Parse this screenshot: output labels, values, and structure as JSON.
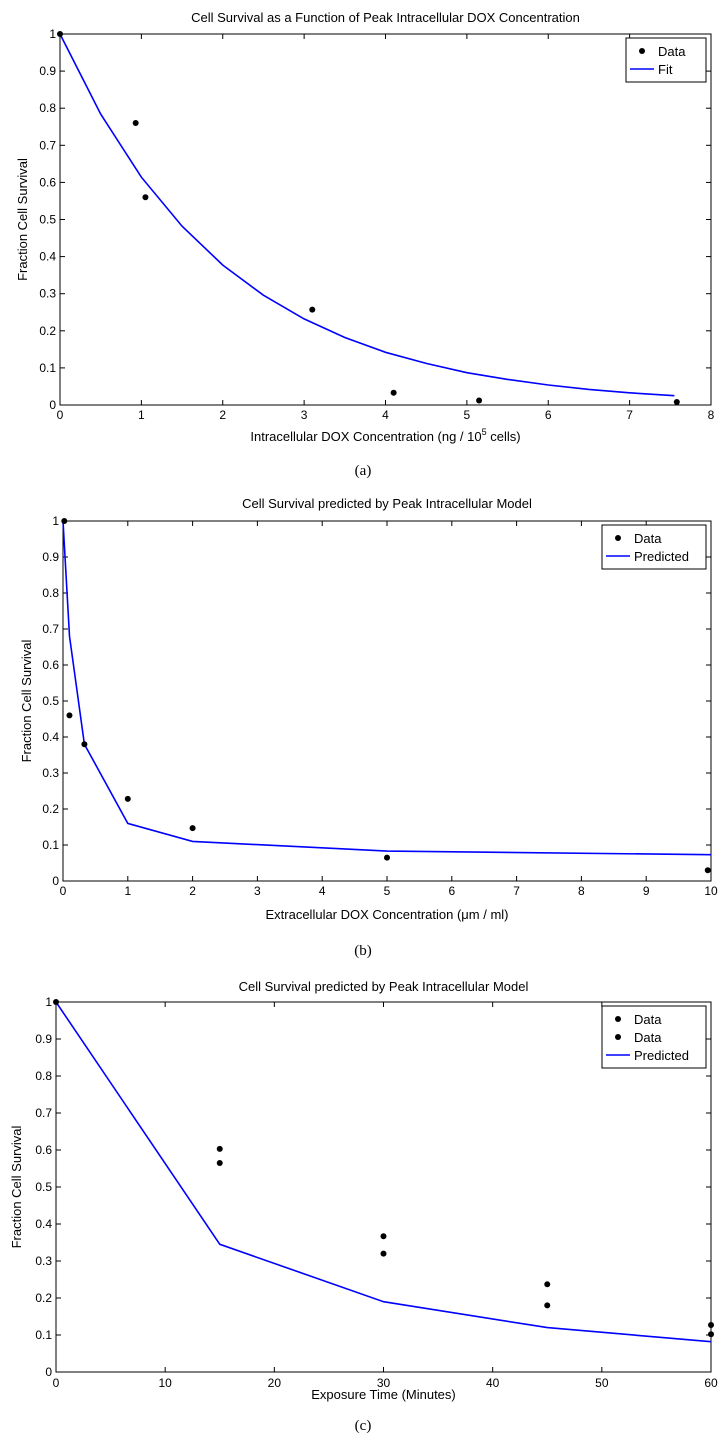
{
  "chart_data": [
    {
      "type": "scatter",
      "title": "Cell Survival as a Function of Peak Intracellular DOX Concentration",
      "xlabel_pre": "Intracellular DOX Concentration (ng / 10",
      "xlabel_sup": "5",
      "xlabel_post": " cells)",
      "ylabel": "Fraction Cell Survival",
      "caption": "(a)",
      "xlim": [
        0,
        8
      ],
      "ylim": [
        0,
        1
      ],
      "xticks": [
        "0",
        "1",
        "2",
        "3",
        "4",
        "5",
        "6",
        "7",
        "8"
      ],
      "yticks": [
        "0",
        "0.1",
        "0.2",
        "0.3",
        "0.4",
        "0.5",
        "0.6",
        "0.7",
        "0.8",
        "0.9",
        "1"
      ],
      "line_color": "#0000ff",
      "point_color": "#000000",
      "legend": {
        "position": "top-right",
        "entries": [
          {
            "kind": "point",
            "label": "Data"
          },
          {
            "kind": "line",
            "label": "Fit"
          }
        ]
      },
      "points": [
        {
          "x": 0,
          "y": 1.0
        },
        {
          "x": 0.93,
          "y": 0.76
        },
        {
          "x": 1.05,
          "y": 0.56
        },
        {
          "x": 3.1,
          "y": 0.257
        },
        {
          "x": 4.1,
          "y": 0.033
        },
        {
          "x": 5.15,
          "y": 0.012
        },
        {
          "x": 7.58,
          "y": 0.008
        }
      ],
      "line": [
        {
          "x": 0,
          "y": 1.0
        },
        {
          "x": 0.5,
          "y": 0.784
        },
        {
          "x": 1,
          "y": 0.614
        },
        {
          "x": 1.5,
          "y": 0.482
        },
        {
          "x": 2,
          "y": 0.377
        },
        {
          "x": 2.5,
          "y": 0.296
        },
        {
          "x": 3,
          "y": 0.232
        },
        {
          "x": 3.5,
          "y": 0.182
        },
        {
          "x": 4,
          "y": 0.142
        },
        {
          "x": 4.5,
          "y": 0.112
        },
        {
          "x": 5,
          "y": 0.087
        },
        {
          "x": 5.5,
          "y": 0.069
        },
        {
          "x": 6,
          "y": 0.054
        },
        {
          "x": 6.5,
          "y": 0.042
        },
        {
          "x": 7,
          "y": 0.033
        },
        {
          "x": 7.55,
          "y": 0.025
        }
      ]
    },
    {
      "type": "scatter",
      "title": "Cell Survival predicted by Peak Intracellular Model",
      "xlabel_pre": "Extracellular DOX Concentration (μm / ml)",
      "xlabel_sup": "",
      "xlabel_post": "",
      "ylabel": "Fraction Cell Survival",
      "caption": "(b)",
      "xlim": [
        0,
        10
      ],
      "ylim": [
        0,
        1
      ],
      "xticks": [
        "0",
        "1",
        "2",
        "3",
        "4",
        "5",
        "6",
        "7",
        "8",
        "9",
        "10"
      ],
      "yticks": [
        "0",
        "0.1",
        "0.2",
        "0.3",
        "0.4",
        "0.5",
        "0.6",
        "0.7",
        "0.8",
        "0.9",
        "1"
      ],
      "line_color": "#0000ff",
      "point_color": "#000000",
      "legend": {
        "position": "top-right",
        "entries": [
          {
            "kind": "point",
            "label": "Data"
          },
          {
            "kind": "line",
            "label": "Predicted"
          }
        ]
      },
      "points": [
        {
          "x": 0.02,
          "y": 1.0
        },
        {
          "x": 0.1,
          "y": 0.46
        },
        {
          "x": 0.33,
          "y": 0.38
        },
        {
          "x": 1.0,
          "y": 0.228
        },
        {
          "x": 2.0,
          "y": 0.147
        },
        {
          "x": 5.0,
          "y": 0.065
        },
        {
          "x": 9.95,
          "y": 0.03
        }
      ],
      "line": [
        {
          "x": 0.0,
          "y": 1.0
        },
        {
          "x": 0.1,
          "y": 0.68
        },
        {
          "x": 0.33,
          "y": 0.38
        },
        {
          "x": 1.0,
          "y": 0.16
        },
        {
          "x": 2.0,
          "y": 0.11
        },
        {
          "x": 5.0,
          "y": 0.083
        },
        {
          "x": 10.0,
          "y": 0.073
        }
      ]
    },
    {
      "type": "scatter",
      "title": "Cell Survival predicted by Peak Intracellular Model",
      "xlabel_pre": "Exposure Time (Minutes)",
      "xlabel_sup": "",
      "xlabel_post": "",
      "ylabel": "Fraction Cell Survival",
      "caption": "(c)",
      "xlim": [
        0,
        60
      ],
      "ylim": [
        0,
        1
      ],
      "xticks": [
        "0",
        "10",
        "20",
        "30",
        "40",
        "50",
        "60"
      ],
      "yticks": [
        "0",
        "0.1",
        "0.2",
        "0.3",
        "0.4",
        "0.5",
        "0.6",
        "0.7",
        "0.8",
        "0.9",
        "1"
      ],
      "line_color": "#0000ff",
      "point_color": "#000000",
      "legend": {
        "position": "top-right",
        "entries": [
          {
            "kind": "point",
            "label": "Data"
          },
          {
            "kind": "point",
            "label": "Data"
          },
          {
            "kind": "line",
            "label": "Predicted"
          }
        ]
      },
      "points": [
        {
          "x": 0,
          "y": 1.0
        },
        {
          "x": 15,
          "y": 0.603
        },
        {
          "x": 15,
          "y": 0.565
        },
        {
          "x": 30,
          "y": 0.367
        },
        {
          "x": 30,
          "y": 0.32
        },
        {
          "x": 45,
          "y": 0.237
        },
        {
          "x": 45,
          "y": 0.18
        },
        {
          "x": 60,
          "y": 0.127
        },
        {
          "x": 60,
          "y": 0.102
        }
      ],
      "line": [
        {
          "x": 0,
          "y": 1.0
        },
        {
          "x": 15,
          "y": 0.345
        },
        {
          "x": 30,
          "y": 0.19
        },
        {
          "x": 45,
          "y": 0.12
        },
        {
          "x": 60,
          "y": 0.082
        }
      ]
    }
  ]
}
